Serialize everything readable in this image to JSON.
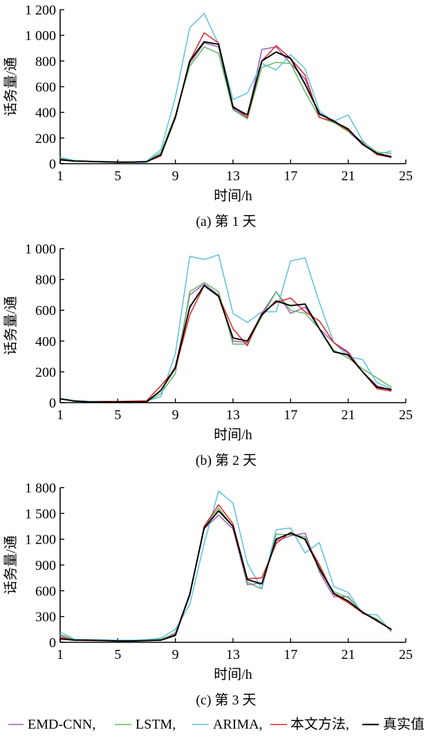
{
  "chart_data": [
    {
      "type": "line",
      "caption": "(a) 第 1 天",
      "xlabel": "时间/h",
      "ylabel": "话务量/通",
      "xlim": [
        1,
        25
      ],
      "ylim": [
        0,
        1200
      ],
      "xticks": [
        1,
        5,
        9,
        13,
        17,
        21,
        25
      ],
      "xtick_labels": [
        "1",
        "5",
        "9",
        "13",
        "17",
        "21",
        "25"
      ],
      "yticks": [
        0,
        200,
        400,
        600,
        800,
        1000,
        1200
      ],
      "ytick_labels": [
        "0",
        "200",
        "400",
        "600",
        "800",
        "1 000",
        "1 200"
      ],
      "x": [
        1,
        2,
        3,
        4,
        5,
        6,
        7,
        8,
        9,
        10,
        11,
        12,
        13,
        14,
        15,
        16,
        17,
        18,
        19,
        20,
        21,
        22,
        23,
        24
      ],
      "series": [
        {
          "name": "EMD-CNN",
          "color": "#9b59b6",
          "values": [
            35,
            20,
            18,
            15,
            12,
            12,
            15,
            75,
            370,
            780,
            940,
            910,
            430,
            360,
            890,
            910,
            780,
            660,
            380,
            340,
            250,
            150,
            80,
            60
          ]
        },
        {
          "name": "LSTM",
          "color": "#5cb85c",
          "values": [
            40,
            20,
            18,
            15,
            12,
            12,
            15,
            90,
            380,
            760,
            910,
            860,
            420,
            350,
            750,
            790,
            780,
            560,
            360,
            320,
            250,
            170,
            90,
            80
          ]
        },
        {
          "name": "ARIMA",
          "color": "#5bc0de",
          "values": [
            50,
            25,
            20,
            18,
            15,
            15,
            20,
            110,
            520,
            1060,
            1170,
            930,
            500,
            550,
            780,
            730,
            850,
            740,
            410,
            330,
            380,
            180,
            70,
            100
          ]
        },
        {
          "name": "本文方法",
          "color": "#e02020",
          "values": [
            35,
            20,
            18,
            15,
            12,
            12,
            15,
            60,
            370,
            800,
            1020,
            940,
            450,
            360,
            800,
            920,
            820,
            690,
            360,
            330,
            260,
            160,
            70,
            50
          ]
        },
        {
          "name": "真实值",
          "color": "#000000",
          "values": [
            30,
            20,
            18,
            15,
            12,
            12,
            15,
            70,
            360,
            800,
            950,
            930,
            440,
            380,
            800,
            870,
            820,
            620,
            390,
            330,
            270,
            150,
            80,
            50
          ]
        }
      ]
    },
    {
      "type": "line",
      "caption": "(b) 第 2 天",
      "xlabel": "时间/h",
      "ylabel": "话务量/通",
      "xlim": [
        1,
        25
      ],
      "ylim": [
        0,
        1000
      ],
      "xticks": [
        1,
        5,
        9,
        13,
        17,
        21,
        25
      ],
      "xtick_labels": [
        "1",
        "5",
        "9",
        "13",
        "17",
        "21",
        "25"
      ],
      "yticks": [
        0,
        200,
        400,
        600,
        800,
        1000
      ],
      "ytick_labels": [
        "0",
        "200",
        "400",
        "600",
        "800",
        "1 000"
      ],
      "x": [
        1,
        2,
        3,
        4,
        5,
        6,
        7,
        8,
        9,
        10,
        11,
        12,
        13,
        14,
        15,
        16,
        17,
        18,
        19,
        20,
        21,
        22,
        23,
        24
      ],
      "series": [
        {
          "name": "EMD-CNN",
          "color": "#9b59b6",
          "values": [
            25,
            10,
            5,
            5,
            5,
            5,
            5,
            80,
            220,
            700,
            770,
            700,
            400,
            390,
            580,
            720,
            580,
            620,
            480,
            390,
            330,
            200,
            110,
            80
          ]
        },
        {
          "name": "LSTM",
          "color": "#5cb85c",
          "values": [
            25,
            10,
            5,
            5,
            5,
            5,
            5,
            60,
            190,
            720,
            780,
            720,
            380,
            380,
            560,
            720,
            600,
            580,
            480,
            340,
            290,
            220,
            160,
            100
          ]
        },
        {
          "name": "ARIMA",
          "color": "#5bc0de",
          "values": [
            25,
            15,
            8,
            8,
            8,
            8,
            10,
            40,
            320,
            950,
            930,
            960,
            580,
            520,
            590,
            590,
            920,
            940,
            650,
            390,
            300,
            280,
            130,
            90
          ]
        },
        {
          "name": "本文方法",
          "color": "#e02020",
          "values": [
            25,
            10,
            5,
            8,
            8,
            10,
            12,
            110,
            220,
            570,
            760,
            690,
            480,
            370,
            580,
            650,
            680,
            590,
            530,
            390,
            320,
            200,
            90,
            75
          ]
        },
        {
          "name": "真实值",
          "color": "#000000",
          "values": [
            25,
            10,
            5,
            5,
            5,
            5,
            5,
            80,
            230,
            620,
            760,
            690,
            420,
            400,
            570,
            660,
            630,
            640,
            480,
            330,
            310,
            200,
            100,
            85
          ]
        }
      ]
    },
    {
      "type": "line",
      "caption": "(c) 第 3 天",
      "xlabel": "时间/h",
      "ylabel": "话务量/通",
      "xlim": [
        1,
        25
      ],
      "ylim": [
        0,
        1800
      ],
      "xticks": [
        1,
        5,
        9,
        13,
        17,
        21,
        25
      ],
      "xtick_labels": [
        "1",
        "5",
        "9",
        "13",
        "17",
        "21",
        "25"
      ],
      "yticks": [
        0,
        300,
        600,
        900,
        1200,
        1500,
        1800
      ],
      "ytick_labels": [
        "0",
        "300",
        "600",
        "900",
        "1 200",
        "1 500",
        "1 800"
      ],
      "x": [
        1,
        2,
        3,
        4,
        5,
        6,
        7,
        8,
        9,
        10,
        11,
        12,
        13,
        14,
        15,
        16,
        17,
        18,
        19,
        20,
        21,
        22,
        23,
        24
      ],
      "series": [
        {
          "name": "EMD-CNN",
          "color": "#9b59b6",
          "values": [
            80,
            30,
            25,
            25,
            20,
            20,
            25,
            30,
            110,
            560,
            1320,
            1480,
            1320,
            670,
            690,
            1180,
            1240,
            1270,
            820,
            530,
            530,
            340,
            260,
            140
          ]
        },
        {
          "name": "LSTM",
          "color": "#5cb85c",
          "values": [
            90,
            30,
            25,
            25,
            20,
            20,
            25,
            35,
            100,
            540,
            1350,
            1560,
            1350,
            700,
            620,
            1260,
            1250,
            1230,
            840,
            590,
            520,
            350,
            270,
            140
          ]
        },
        {
          "name": "ARIMA",
          "color": "#5bc0de",
          "values": [
            120,
            35,
            30,
            28,
            25,
            25,
            30,
            50,
            150,
            440,
            1150,
            1760,
            1620,
            920,
            620,
            1310,
            1330,
            1040,
            1160,
            650,
            580,
            330,
            320,
            120
          ]
        },
        {
          "name": "本文方法",
          "color": "#e02020",
          "values": [
            60,
            25,
            20,
            20,
            15,
            15,
            20,
            25,
            90,
            550,
            1350,
            1600,
            1380,
            740,
            750,
            1150,
            1280,
            1200,
            900,
            560,
            460,
            340,
            260,
            140
          ]
        },
        {
          "name": "真实值",
          "color": "#000000",
          "values": [
            40,
            25,
            25,
            20,
            15,
            15,
            20,
            25,
            80,
            560,
            1330,
            1530,
            1350,
            730,
            680,
            1200,
            1270,
            1200,
            860,
            570,
            480,
            350,
            250,
            150
          ]
        }
      ]
    }
  ],
  "legend": [
    {
      "label": "EMD-CNN,",
      "color": "#9b59b6"
    },
    {
      "label": "LSTM,",
      "color": "#5cb85c"
    },
    {
      "label": "ARIMA,",
      "color": "#5bc0de"
    },
    {
      "label": "本文方法,",
      "color": "#e02020"
    },
    {
      "label": "真实值",
      "color": "#000000"
    }
  ]
}
